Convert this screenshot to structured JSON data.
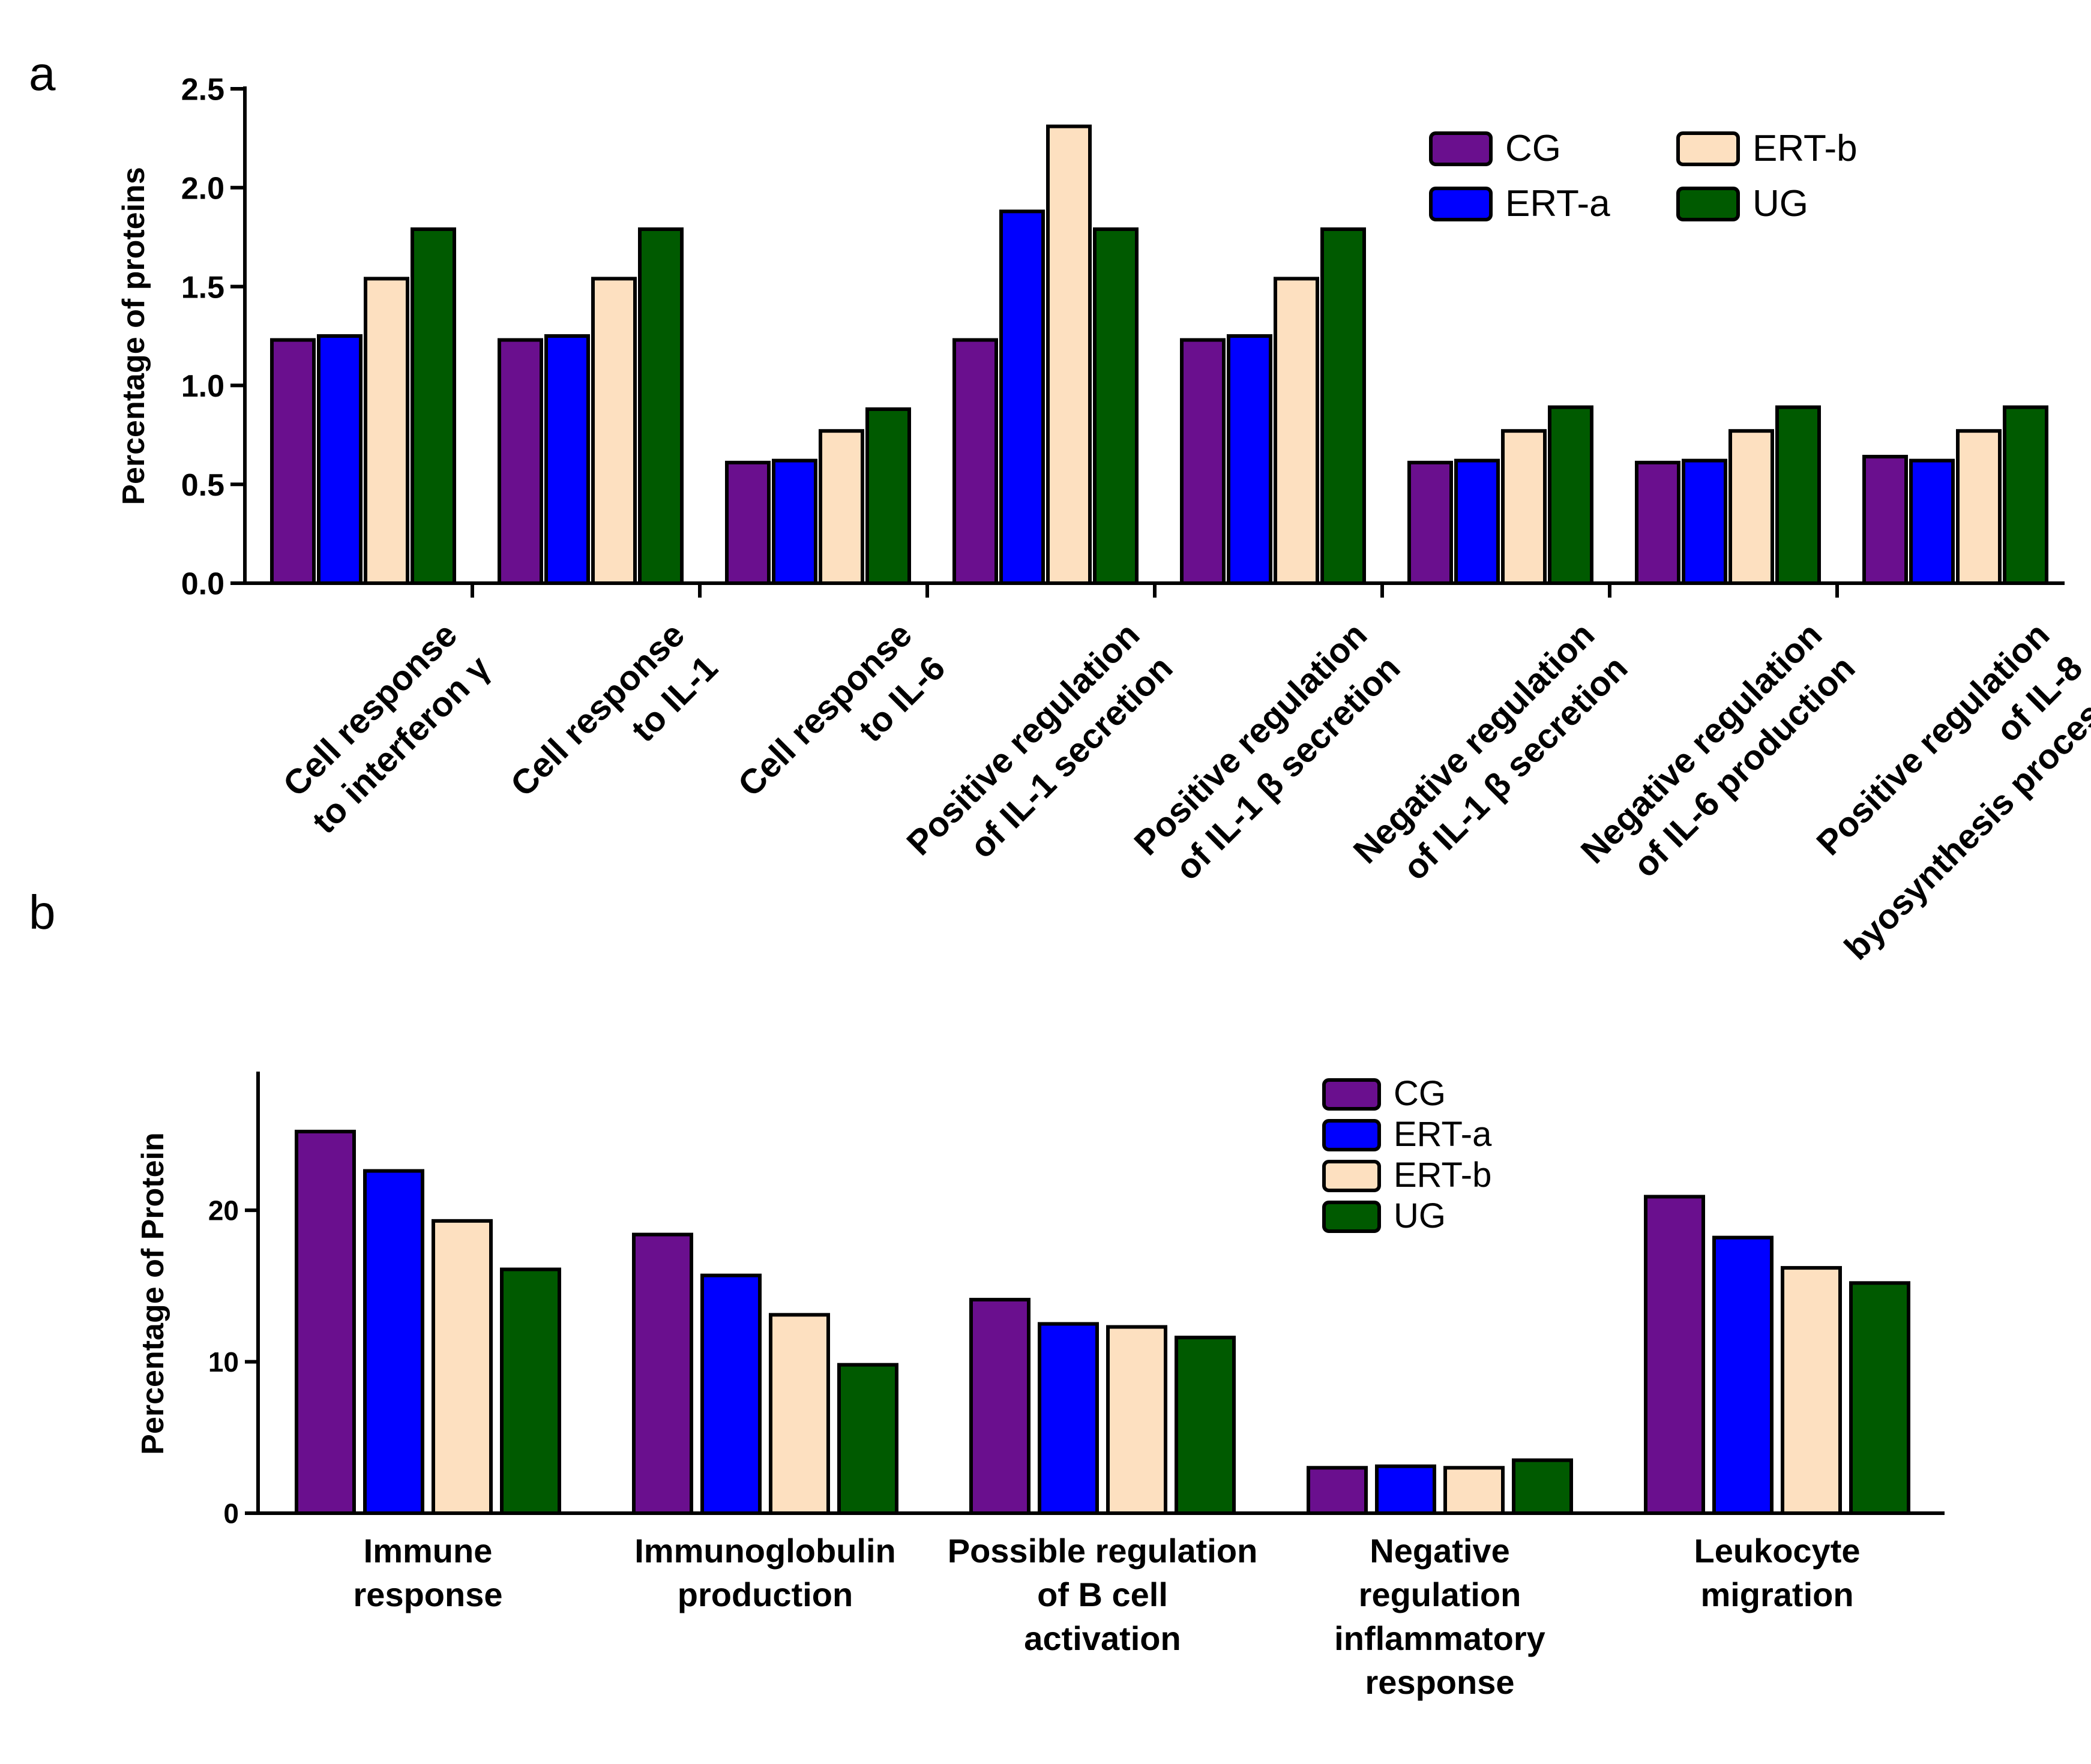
{
  "panel_labels": {
    "a": "a",
    "b": "b"
  },
  "colors": {
    "CG": "#6a0f8e",
    "ERT-a": "#0000ff",
    "ERT-b": "#fde0c0",
    "UG": "#005a00"
  },
  "chart_data": [
    {
      "type": "bar",
      "panel": "a",
      "title": "",
      "xlabel": "",
      "ylabel": "Percentage of proteins",
      "ylim": [
        0,
        2.5
      ],
      "yticks": [
        0.0,
        0.5,
        1.0,
        1.5,
        2.0,
        2.5
      ],
      "ytick_labels": [
        "0.0",
        "0.5",
        "1.0",
        "1.5",
        "2.0",
        "2.5"
      ],
      "legend_position": "top-right",
      "categories": [
        [
          "Cell response",
          "to interferon γ"
        ],
        [
          "Cell response",
          "to IL-1"
        ],
        [
          "Cell response",
          "to IL-6"
        ],
        [
          "Positive regulation",
          "of IL-1 secretion"
        ],
        [
          "Positive regulation",
          "of IL-1 β secretion"
        ],
        [
          "Negative regulation",
          "of IL-1 β secretion"
        ],
        [
          "Negative regulation",
          "of IL-6 production"
        ],
        [
          "Positive regulation",
          "of IL-8",
          "byosynthesis process"
        ]
      ],
      "series": [
        {
          "name": "CG",
          "values": [
            1.23,
            1.23,
            0.61,
            1.23,
            1.23,
            0.61,
            0.61,
            0.64
          ]
        },
        {
          "name": "ERT-a",
          "values": [
            1.25,
            1.25,
            0.62,
            1.88,
            1.25,
            0.62,
            0.62,
            0.62
          ]
        },
        {
          "name": "ERT-b",
          "values": [
            1.54,
            1.54,
            0.77,
            2.31,
            1.54,
            0.77,
            0.77,
            0.77
          ]
        },
        {
          "name": "UG",
          "values": [
            1.79,
            1.79,
            0.88,
            1.79,
            1.79,
            0.89,
            0.89,
            0.89
          ]
        }
      ]
    },
    {
      "type": "bar",
      "panel": "b",
      "title": "",
      "xlabel": "",
      "ylabel": "Percentage of Protein",
      "ylim": [
        0,
        29
      ],
      "yticks": [
        0,
        10,
        20
      ],
      "ytick_labels": [
        "0",
        "10",
        "20"
      ],
      "legend_position": "top-right",
      "categories": [
        [
          "Immune",
          "response"
        ],
        [
          "Immunoglobulin",
          "production"
        ],
        [
          "Possible regulation",
          "of B cell",
          "activation"
        ],
        [
          "Negative",
          "regulation",
          "inflammatory",
          "response"
        ],
        [
          "Leukocyte",
          "migration"
        ]
      ],
      "series": [
        {
          "name": "CG",
          "values": [
            25.2,
            18.4,
            14.1,
            3.0,
            20.9
          ]
        },
        {
          "name": "ERT-a",
          "values": [
            22.6,
            15.7,
            12.5,
            3.1,
            18.2
          ]
        },
        {
          "name": "ERT-b",
          "values": [
            19.3,
            13.1,
            12.3,
            3.0,
            16.2
          ]
        },
        {
          "name": "UG",
          "values": [
            16.1,
            9.8,
            11.6,
            3.5,
            15.2
          ]
        }
      ]
    }
  ]
}
